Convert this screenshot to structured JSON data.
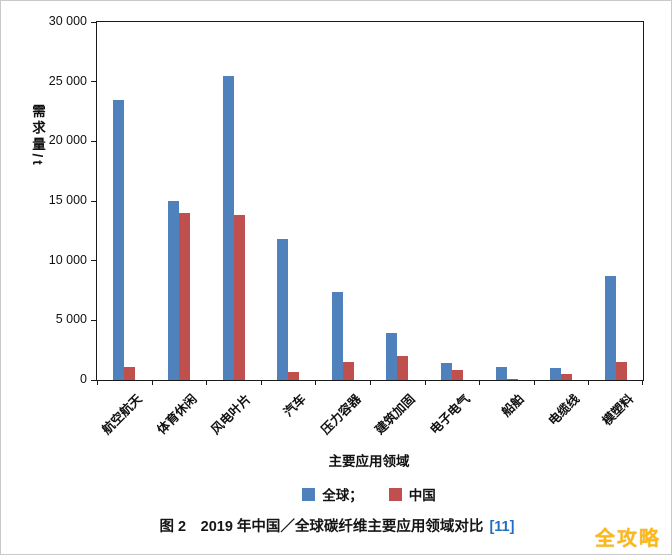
{
  "figure": {
    "caption_prefix": "图 2　2019 年中国／全球碳纤维主要应用领域对比",
    "caption_ref": "[11]",
    "watermark": "全攻略"
  },
  "chart_data": {
    "type": "bar",
    "xlabel": "主要应用领域",
    "ylabel": "需求量/t",
    "ylim": [
      0,
      30000
    ],
    "ytick_interval": 5000,
    "ytick_labels": [
      "0",
      "5 000",
      "10 000",
      "15 000",
      "20 000",
      "25 000",
      "30 000"
    ],
    "grid": false,
    "legend_position": "bottom",
    "legend_labels": [
      "全球；",
      "中国"
    ],
    "categories": [
      "航空航天",
      "体育休闲",
      "风电叶片",
      "汽车",
      "压力容器",
      "建筑加固",
      "电子电气",
      "船舶",
      "电缆线",
      "模塑料"
    ],
    "series": [
      {
        "name": "全球",
        "color": "#4F81BD",
        "values": [
          23500,
          15000,
          25500,
          11800,
          7400,
          3900,
          1400,
          1100,
          1000,
          8700
        ]
      },
      {
        "name": "中国",
        "color": "#C0504D",
        "values": [
          1100,
          14000,
          13800,
          700,
          1500,
          2000,
          800,
          100,
          500,
          1500
        ]
      }
    ]
  }
}
